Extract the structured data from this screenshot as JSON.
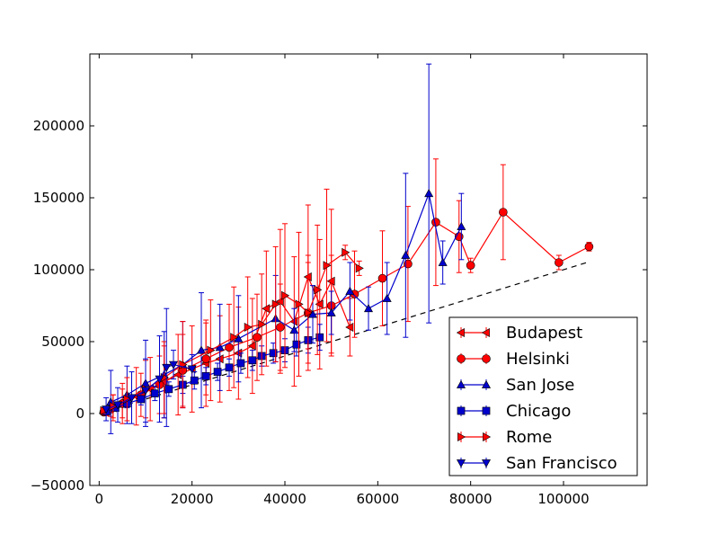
{
  "chart_data": {
    "type": "line",
    "title": "",
    "xlabel": "",
    "ylabel": "",
    "xlim": [
      -2000,
      118000
    ],
    "ylim": [
      -50000,
      250000
    ],
    "x_ticks": [
      0,
      20000,
      40000,
      60000,
      80000,
      100000
    ],
    "x_tick_labels": [
      "0",
      "20000",
      "40000",
      "60000",
      "80000",
      "100000"
    ],
    "y_ticks": [
      -50000,
      0,
      50000,
      100000,
      150000,
      200000
    ],
    "y_tick_labels": [
      "−50000",
      "0",
      "50000",
      "100000",
      "150000",
      "200000"
    ],
    "grid": false,
    "legend_position": "lower-right",
    "reference_line": {
      "style": "dashed",
      "color": "#000000",
      "x": [
        0,
        105000
      ],
      "y": [
        0,
        105000
      ]
    },
    "series": [
      {
        "name": "Budapest",
        "color": "#ff0000",
        "marker": "triangle-left",
        "points": [
          {
            "x": 1500,
            "y": 1500,
            "err": 3000
          },
          {
            "x": 3000,
            "y": 4000,
            "err": 9000
          },
          {
            "x": 5000,
            "y": 7000,
            "err": 14000
          },
          {
            "x": 8000,
            "y": 12000,
            "err": 20000
          },
          {
            "x": 11000,
            "y": 17000,
            "err": 22000
          },
          {
            "x": 14000,
            "y": 22000,
            "err": 25000
          },
          {
            "x": 17000,
            "y": 27000,
            "err": 28000
          },
          {
            "x": 20000,
            "y": 31000,
            "err": 30000
          },
          {
            "x": 23000,
            "y": 35000,
            "err": 30000
          },
          {
            "x": 26000,
            "y": 38000,
            "err": 30000
          },
          {
            "x": 30000,
            "y": 42000,
            "err": 32000
          },
          {
            "x": 33000,
            "y": 47000,
            "err": 33000
          },
          {
            "x": 36000,
            "y": 73000,
            "err": 40000
          },
          {
            "x": 39000,
            "y": 78000,
            "err": 50000
          },
          {
            "x": 42000,
            "y": 64000,
            "err": 45000
          },
          {
            "x": 45000,
            "y": 95000,
            "err": 50000
          },
          {
            "x": 47500,
            "y": 76000,
            "err": 45000
          },
          {
            "x": 50000,
            "y": 92000,
            "err": 50000
          },
          {
            "x": 54000,
            "y": 60000,
            "err": 20000
          }
        ]
      },
      {
        "name": "Helsinki",
        "color": "#ff0000",
        "marker": "circle",
        "points": [
          {
            "x": 1000,
            "y": 1000,
            "err": 2000
          },
          {
            "x": 2500,
            "y": 3000,
            "err": 5000
          },
          {
            "x": 5000,
            "y": 7000,
            "err": 10000
          },
          {
            "x": 9000,
            "y": 13000,
            "err": 15000
          },
          {
            "x": 13000,
            "y": 20000,
            "err": 20000
          },
          {
            "x": 18000,
            "y": 30000,
            "err": 25000
          },
          {
            "x": 23000,
            "y": 38000,
            "err": 25000
          },
          {
            "x": 28000,
            "y": 46000,
            "err": 30000
          },
          {
            "x": 34000,
            "y": 53000,
            "err": 30000
          },
          {
            "x": 39000,
            "y": 60000,
            "err": 30000
          },
          {
            "x": 45000,
            "y": 70000,
            "err": 35000
          },
          {
            "x": 50000,
            "y": 75000,
            "err": 35000
          },
          {
            "x": 55000,
            "y": 83000,
            "err": 30000
          },
          {
            "x": 61000,
            "y": 94000,
            "err": 33000
          },
          {
            "x": 66500,
            "y": 104000,
            "err": 40000
          },
          {
            "x": 72500,
            "y": 133000,
            "err": 44000
          },
          {
            "x": 77500,
            "y": 123000,
            "err": 25000
          },
          {
            "x": 80000,
            "y": 103000,
            "err": 5000
          },
          {
            "x": 87000,
            "y": 140000,
            "err": 33000
          },
          {
            "x": 99000,
            "y": 105000,
            "err": 5000
          },
          {
            "x": 105500,
            "y": 116000,
            "err": 3000
          }
        ]
      },
      {
        "name": "San Jose",
        "color": "#0000cc",
        "marker": "triangle-up",
        "points": [
          {
            "x": 2500,
            "y": 8000,
            "err": 22000
          },
          {
            "x": 6000,
            "y": 13000,
            "err": 20000
          },
          {
            "x": 10000,
            "y": 21000,
            "err": 30000
          },
          {
            "x": 14000,
            "y": 27000,
            "err": 30000
          },
          {
            "x": 18000,
            "y": 34000,
            "err": 30000
          },
          {
            "x": 22000,
            "y": 44000,
            "err": 40000
          },
          {
            "x": 26000,
            "y": 46000,
            "err": 30000
          },
          {
            "x": 30000,
            "y": 52000,
            "err": 30000
          },
          {
            "x": 38000,
            "y": 66000,
            "err": 30000
          },
          {
            "x": 42000,
            "y": 58000,
            "err": 15000
          },
          {
            "x": 46000,
            "y": 69000,
            "err": 20000
          },
          {
            "x": 50000,
            "y": 70000,
            "err": 15000
          },
          {
            "x": 54000,
            "y": 85000,
            "err": 20000
          },
          {
            "x": 58000,
            "y": 73000,
            "err": 15000
          },
          {
            "x": 62000,
            "y": 80000,
            "err": 25000
          },
          {
            "x": 66000,
            "y": 110000,
            "err": 57000
          },
          {
            "x": 71000,
            "y": 153000,
            "err": 90000
          },
          {
            "x": 74000,
            "y": 105000,
            "err": 15000
          },
          {
            "x": 78000,
            "y": 130000,
            "err": 23000
          }
        ]
      },
      {
        "name": "Chicago",
        "color": "#0000cc",
        "marker": "square",
        "points": [
          {
            "x": 1500,
            "y": 1500,
            "err": 1000
          },
          {
            "x": 3500,
            "y": 4000,
            "err": 2000
          },
          {
            "x": 6000,
            "y": 7000,
            "err": 3000
          },
          {
            "x": 9000,
            "y": 10000,
            "err": 4000
          },
          {
            "x": 12000,
            "y": 14000,
            "err": 5000
          },
          {
            "x": 15000,
            "y": 17000,
            "err": 5000
          },
          {
            "x": 18000,
            "y": 20000,
            "err": 6000
          },
          {
            "x": 20500,
            "y": 23000,
            "err": 6000
          },
          {
            "x": 23000,
            "y": 26000,
            "err": 6000
          },
          {
            "x": 25500,
            "y": 29000,
            "err": 6000
          },
          {
            "x": 28000,
            "y": 32000,
            "err": 6000
          },
          {
            "x": 30500,
            "y": 35000,
            "err": 7000
          },
          {
            "x": 33000,
            "y": 37000,
            "err": 7000
          },
          {
            "x": 35000,
            "y": 40000,
            "err": 7000
          },
          {
            "x": 37500,
            "y": 42000,
            "err": 7000
          },
          {
            "x": 40000,
            "y": 44000,
            "err": 8000
          },
          {
            "x": 42500,
            "y": 48000,
            "err": 8000
          },
          {
            "x": 45000,
            "y": 51000,
            "err": 9000
          },
          {
            "x": 47500,
            "y": 53000,
            "err": 9000
          }
        ]
      },
      {
        "name": "Rome",
        "color": "#ff0000",
        "marker": "triangle-right",
        "points": [
          {
            "x": 1000,
            "y": 2000,
            "err": 2000
          },
          {
            "x": 3000,
            "y": 5000,
            "err": 8000
          },
          {
            "x": 6000,
            "y": 10000,
            "err": 15000
          },
          {
            "x": 10000,
            "y": 17000,
            "err": 20000
          },
          {
            "x": 14000,
            "y": 25000,
            "err": 25000
          },
          {
            "x": 18000,
            "y": 34000,
            "err": 30000
          },
          {
            "x": 24000,
            "y": 44000,
            "err": 35000
          },
          {
            "x": 29000,
            "y": 53000,
            "err": 35000
          },
          {
            "x": 32000,
            "y": 60000,
            "err": 35000
          },
          {
            "x": 35000,
            "y": 62000,
            "err": 35000
          },
          {
            "x": 38000,
            "y": 76000,
            "err": 40000
          },
          {
            "x": 40000,
            "y": 82000,
            "err": 50000
          },
          {
            "x": 43000,
            "y": 76000,
            "err": 50000
          },
          {
            "x": 45000,
            "y": 70000,
            "err": 40000
          },
          {
            "x": 47000,
            "y": 86000,
            "err": 45000
          },
          {
            "x": 49000,
            "y": 103000,
            "err": 53000
          },
          {
            "x": 53000,
            "y": 112000,
            "err": 5000
          },
          {
            "x": 56000,
            "y": 101000,
            "err": 5000
          }
        ]
      },
      {
        "name": "San Francisco",
        "color": "#0000cc",
        "marker": "triangle-down",
        "points": [
          {
            "x": 1500,
            "y": 3000,
            "err": 8000
          },
          {
            "x": 4000,
            "y": 6000,
            "err": 12000
          },
          {
            "x": 7000,
            "y": 11000,
            "err": 18000
          },
          {
            "x": 10000,
            "y": 16000,
            "err": 22000
          },
          {
            "x": 13000,
            "y": 24000,
            "err": 30000
          },
          {
            "x": 14500,
            "y": 32000,
            "err": 41000
          },
          {
            "x": 16000,
            "y": 34000,
            "err": 10000
          },
          {
            "x": 20000,
            "y": 31000,
            "err": 10000
          }
        ]
      }
    ]
  }
}
